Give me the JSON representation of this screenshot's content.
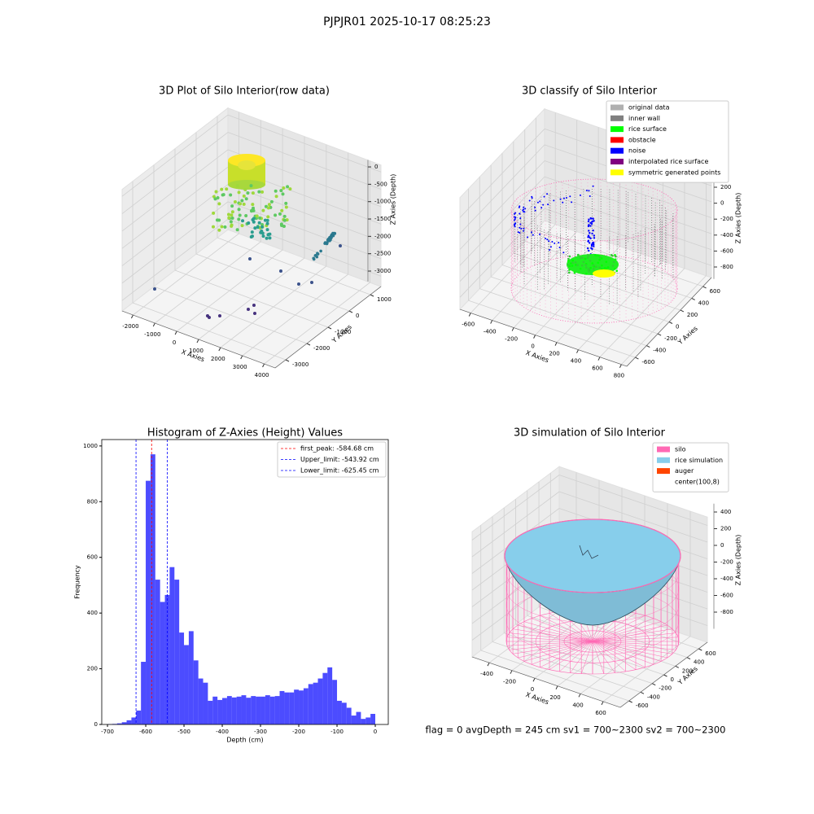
{
  "suptitle": "PJPJR01 2025-10-17 08:25:23",
  "footer": "flag = 0     avgDepth = 245 cm  sv1 = 700~2300  sv2 = 700~2300",
  "chart_data": [
    {
      "type": "scatter3d",
      "title": "3D Plot of Silo Interior(row data)",
      "xlabel": "X Axies",
      "ylabel": "Y Axies",
      "zlabel": "Z Axies (Depth)",
      "xlim": [
        -2500,
        4500
      ],
      "ylim": [
        -3500,
        1500
      ],
      "zlim": [
        -3300,
        200
      ],
      "xticks": [
        -2000,
        -1000,
        0,
        1000,
        2000,
        3000,
        4000
      ],
      "yticks": [
        -3000,
        -2000,
        -1000,
        0,
        1000
      ],
      "zticks": [
        0,
        -500,
        -1000,
        -1500,
        -2000,
        -2500,
        -3000
      ]
    },
    {
      "type": "classify3d",
      "title": "3D classify of Silo Interior",
      "xlabel": "X Axies",
      "ylabel": "Y Axies",
      "zlabel": "Z Axies (Depth)",
      "xlim": [
        -700,
        850
      ],
      "ylim": [
        -750,
        750
      ],
      "zlim": [
        -950,
        450
      ],
      "xticks": [
        -600,
        -400,
        -200,
        0,
        200,
        400,
        600,
        800
      ],
      "yticks": [
        -600,
        -400,
        -200,
        0,
        200,
        400,
        600
      ],
      "zticks": [
        200,
        0,
        -200,
        -400,
        -600,
        -800
      ],
      "legend": [
        {
          "name": "original data",
          "color": "#b0b0b0"
        },
        {
          "name": "inner wall",
          "color": "#808080"
        },
        {
          "name": "rice surface",
          "color": "#00ff00"
        },
        {
          "name": "obstacle",
          "color": "#ff0000"
        },
        {
          "name": "noise",
          "color": "#0000ff"
        },
        {
          "name": "interpolated rice surface",
          "color": "#800080"
        },
        {
          "name": "symmetric generated points",
          "color": "#ffff00"
        }
      ]
    },
    {
      "type": "histogram",
      "title": "Histogram of Z-Axies (Height) Values",
      "xlabel": "Depth (cm)",
      "ylabel": "Frequency",
      "color": "#0000ff",
      "alpha": 0.7,
      "xlim": [
        -715,
        34
      ],
      "ylim": [
        0,
        1023
      ],
      "xticks": [
        -700,
        -600,
        -500,
        -400,
        -300,
        -200,
        -100,
        0
      ],
      "yticks": [
        0,
        200,
        400,
        600,
        800,
        1000
      ],
      "bins": [
        -700,
        -687.5,
        -675,
        -662.5,
        -650,
        -637.5,
        -625,
        -612.5,
        -600,
        -587.5,
        -575,
        -562.5,
        -550,
        -537.5,
        -525,
        -512.5,
        -500,
        -487.5,
        -475,
        -462.5,
        -450,
        -437.5,
        -425,
        -412.5,
        -400,
        -387.5,
        -375,
        -362.5,
        -350,
        -337.5,
        -325,
        -312.5,
        -300,
        -287.5,
        -275,
        -262.5,
        -250,
        -237.5,
        -225,
        -212.5,
        -200,
        -187.5,
        -175,
        -162.5,
        -150,
        -137.5,
        -125,
        -112.5,
        -100,
        -87.5,
        -75,
        -62.5,
        -50,
        -37.5,
        -25,
        -12.5,
        0
      ],
      "values": [
        1,
        2,
        4,
        8,
        15,
        25,
        50,
        225,
        875,
        970,
        520,
        440,
        465,
        565,
        520,
        330,
        285,
        335,
        230,
        165,
        150,
        85,
        100,
        88,
        95,
        102,
        97,
        100,
        105,
        96,
        102,
        100,
        100,
        105,
        100,
        102,
        120,
        115,
        115,
        125,
        122,
        130,
        145,
        150,
        165,
        185,
        205,
        160,
        85,
        78,
        60,
        32,
        45,
        20,
        25,
        38
      ],
      "vlines": [
        {
          "label": "first_peak: -584.68 cm",
          "value": -584.68,
          "color": "#ff0000"
        },
        {
          "label": "Upper_limit: -543.92 cm",
          "value": -543.92,
          "color": "#0000ff"
        },
        {
          "label": "Lower_limit: -625.45 cm",
          "value": -625.45,
          "color": "#0000ff"
        }
      ]
    },
    {
      "type": "simulation3d",
      "title": "3D simulation of Silo Interior",
      "xlabel": "X Axies",
      "ylabel": "Y Axies",
      "zlabel": "Z Axies (Depth)",
      "xlim": [
        -550,
        750
      ],
      "ylim": [
        -750,
        750
      ],
      "zlim": [
        -1000,
        500
      ],
      "xticks": [
        -400,
        -200,
        0,
        200,
        400,
        600
      ],
      "yticks": [
        -600,
        -400,
        -200,
        0,
        200,
        400,
        600
      ],
      "zticks": [
        400,
        200,
        0,
        -200,
        -400,
        -600,
        -800
      ],
      "legend": [
        {
          "name": "silo",
          "color": "#ff69b4"
        },
        {
          "name": "rice simulation",
          "color": "#87ceeb"
        },
        {
          "name": "auger",
          "color": "#ff4500"
        },
        {
          "name": "center(100,8)",
          "color": "#ffffff"
        }
      ]
    }
  ]
}
